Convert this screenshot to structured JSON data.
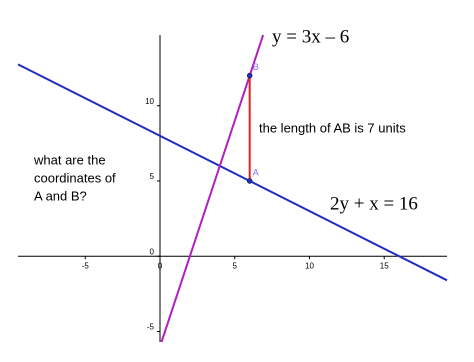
{
  "chart_data": {
    "type": "line",
    "xlim": [
      -9.5,
      19.2
    ],
    "ylim": [
      -5.7,
      14.7
    ],
    "xticks": [
      -5,
      0,
      5,
      10,
      15
    ],
    "yticks": [
      -5,
      0,
      5,
      10
    ],
    "series": [
      {
        "name": "2y + x = 16",
        "color": "#1f2fbf",
        "x": [
          -9.5,
          19.2
        ],
        "values": [
          12.75,
          -1.6
        ]
      },
      {
        "name": "y = 3x – 6",
        "color": "#b21fbf",
        "x": [
          0.1,
          6.9
        ],
        "values": [
          -5.7,
          14.7
        ]
      },
      {
        "color": "#e8201c",
        "x": [
          6,
          6
        ],
        "values": [
          5,
          12
        ]
      }
    ],
    "points": [
      {
        "label": "A",
        "x": 6,
        "y": 5
      },
      {
        "label": "B",
        "x": 6,
        "y": 12
      }
    ],
    "annotations": [
      "the length of AB is 7 units",
      "what are the",
      "coordinates of",
      "A and B?"
    ]
  }
}
